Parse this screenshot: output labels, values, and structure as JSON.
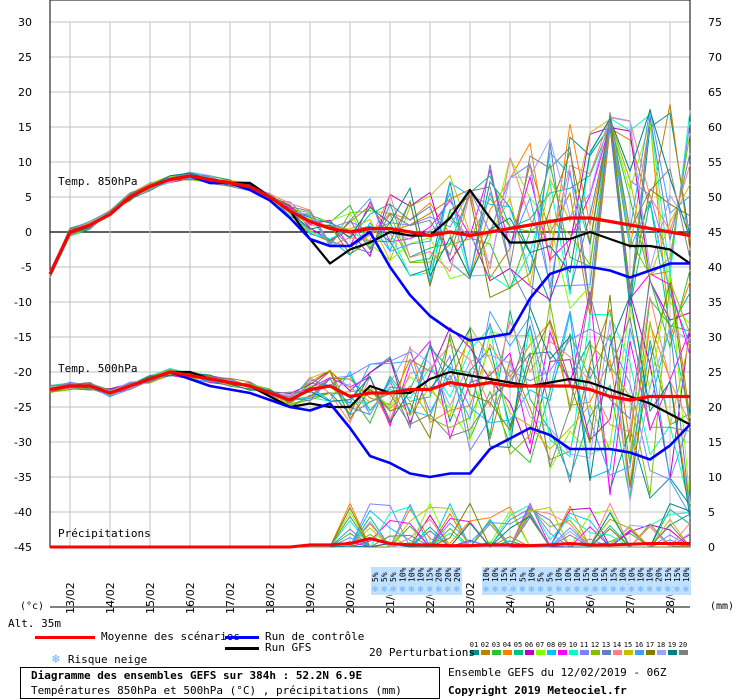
{
  "header": {
    "altitude": "Alt. 35m",
    "unit_left": "(°c)",
    "unit_right": "(mm)"
  },
  "labels": {
    "t850": "Temp. 850hPa",
    "t500": "Temp. 500hPa",
    "precip": "Précipitations"
  },
  "legend": {
    "mean": "Moyenne des scénarios",
    "control": "Run de contrôle",
    "gfs": "Run GFS",
    "snow": "Risque neige",
    "perturbations": "20 Perturbations",
    "ensemble_date": "Ensemble GEFS du 12/02/2019 - 06Z",
    "copyright": "Copyright 2019 Meteociel.fr"
  },
  "caption": {
    "title": "Diagramme des ensembles GEFS sur 384h : 52.2N 6.9E",
    "subtitle": "Températures 850hPa et 500hPa (°C) , précipitations (mm)"
  },
  "colors": {
    "mean": "#ff0000",
    "control": "#0000ff",
    "gfs": "#000000",
    "grid": "#c0c0c0",
    "snow": "#66b3ff",
    "members": [
      "#009090",
      "#c08000",
      "#30c030",
      "#ff8000",
      "#00c080",
      "#c000c0",
      "#80ff00",
      "#00c0ff",
      "#ff00ff",
      "#00ffc0",
      "#8080ff",
      "#80c000",
      "#6080c0",
      "#ff8080",
      "#c0c000",
      "#40a0ff",
      "#808000",
      "#a0a0ff",
      "#008080",
      "#808080"
    ]
  },
  "chart_data": {
    "type": "line",
    "x_dates": [
      "13/02",
      "14/02",
      "15/02",
      "16/02",
      "17/02",
      "18/02",
      "19/02",
      "20/02",
      "21/02",
      "22/02",
      "23/02",
      "24/02",
      "25/02",
      "26/02",
      "27/02",
      "28/02"
    ],
    "y_left_ticks": [
      30,
      25,
      20,
      15,
      10,
      5,
      0,
      -5,
      -10,
      -15,
      -20,
      -25,
      -30,
      -35,
      -40,
      -45
    ],
    "y_right_ticks": [
      75,
      70,
      65,
      60,
      55,
      50,
      45,
      40,
      35,
      30,
      25,
      20,
      15,
      10,
      5,
      0
    ],
    "ylim_left": [
      -45,
      30
    ],
    "ylim_right": [
      0,
      75
    ],
    "x_range_hours": [
      6,
      390
    ],
    "grid": true,
    "snow_risk_pct": [
      "5%",
      "5%",
      "5%",
      "10%",
      "10%",
      "10%",
      "15%",
      "20%",
      "20%",
      "20%",
      "10%",
      "10%",
      "15%",
      "15%",
      "5%",
      "10%",
      "5%",
      "5%",
      "10%",
      "10%",
      "10%",
      "15%",
      "10%",
      "15%",
      "15%",
      "10%",
      "10%",
      "10%",
      "10%",
      "20%",
      "15%",
      "15%",
      "10%"
    ],
    "perturbation_ids": [
      "01",
      "02",
      "03",
      "04",
      "05",
      "06",
      "07",
      "08",
      "09",
      "10",
      "11",
      "12",
      "13",
      "14",
      "15",
      "16",
      "17",
      "18",
      "19",
      "20"
    ],
    "t850": {
      "mean": [
        -6,
        0,
        1,
        2.5,
        5,
        6.5,
        7.5,
        8,
        7.5,
        7,
        6.5,
        5,
        3,
        1.5,
        0.5,
        0,
        0.5,
        0.5,
        0,
        -0.5,
        0,
        -0.5,
        0,
        0.5,
        1,
        1.5,
        2,
        2,
        1.5,
        1,
        0.5,
        0,
        -0.5
      ],
      "control": [
        -6,
        0,
        1,
        2.5,
        5,
        6.5,
        7.5,
        8,
        7,
        7,
        6,
        4.5,
        2,
        -1,
        -2,
        -2,
        0,
        -5,
        -9,
        -12,
        -14,
        -15.5,
        -15,
        -14.5,
        -9.5,
        -6,
        -5,
        -5,
        -5.5,
        -6.5,
        -5.5,
        -4.5,
        -4.5
      ],
      "gfs": [
        -6,
        0,
        1,
        2.5,
        5,
        6.5,
        7.5,
        8,
        7,
        7,
        7,
        5,
        3,
        -1,
        -4.5,
        -2.5,
        -1.5,
        0,
        -0.5,
        -0.5,
        2,
        6,
        2,
        -1.5,
        -1.5,
        -1,
        -1,
        0,
        -1,
        -2,
        -2,
        -2.5,
        -4.5
      ]
    },
    "t500": {
      "mean": [
        -22.5,
        -22,
        -22,
        -23,
        -22,
        -21,
        -20,
        -20.5,
        -21,
        -21.5,
        -22,
        -23,
        -24,
        -22.5,
        -22,
        -23.5,
        -23,
        -23,
        -22.5,
        -22.5,
        -21.5,
        -22,
        -21.5,
        -22,
        -22,
        -22,
        -22,
        -22.5,
        -23.5,
        -24,
        -23.5,
        -23.5,
        -23.5
      ],
      "control": [
        -22.5,
        -22,
        -22,
        -23,
        -22,
        -21,
        -20,
        -21,
        -22,
        -22.5,
        -23,
        -24,
        -25,
        -25.5,
        -24.5,
        -28,
        -32,
        -33,
        -34.5,
        -35,
        -34.5,
        -34.5,
        -31,
        -29.5,
        -28,
        -29,
        -31,
        -31,
        -31,
        -31.5,
        -32.5,
        -30.5,
        -27.5
      ],
      "gfs": [
        -22.5,
        -22,
        -22,
        -23,
        -22,
        -21,
        -20,
        -20,
        -21,
        -21.5,
        -22,
        -23.5,
        -25,
        -24.5,
        -25,
        -25,
        -22,
        -23,
        -23,
        -21,
        -20,
        -20.5,
        -21,
        -21.5,
        -22,
        -21.5,
        -21,
        -21.5,
        -22.5,
        -23.5,
        -24.5,
        -26,
        -27.5
      ]
    },
    "precip_mm": {
      "mean": [
        0,
        0,
        0,
        0,
        0,
        0,
        0,
        0,
        0,
        0,
        0,
        0,
        0,
        0.3,
        0.3,
        0.5,
        1.2,
        0.5,
        0.3,
        0.3,
        0.2,
        0.2,
        0.3,
        0.3,
        0.2,
        0.3,
        0.5,
        0.3,
        0.3,
        0.4,
        0.5,
        0.5,
        0.5
      ]
    }
  }
}
